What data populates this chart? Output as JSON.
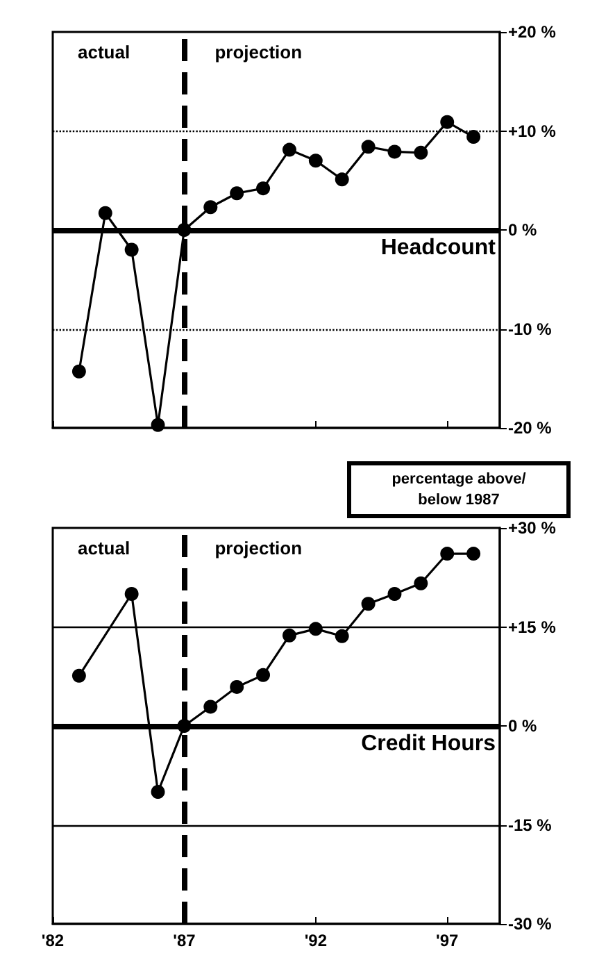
{
  "chart_data": [
    {
      "type": "line",
      "x": [
        1983,
        1984,
        1985,
        1986,
        1987,
        1988,
        1989,
        1990,
        1991,
        1992,
        1993,
        1994,
        1995,
        1996,
        1997,
        1998
      ],
      "series": [
        {
          "name": "Headcount",
          "color": "#000000",
          "values": [
            -14.3,
            1.7,
            -2.0,
            -19.7,
            0,
            2.3,
            3.7,
            4.2,
            8.1,
            7.0,
            5.1,
            8.4,
            7.9,
            7.8,
            10.9,
            9.4
          ]
        }
      ],
      "xlim": [
        1982,
        1999
      ],
      "xticks": [
        1982,
        1987,
        1992,
        1997
      ],
      "ylim": [
        -20,
        20
      ],
      "yticks": [
        {
          "value": 20,
          "label": "+20 %"
        },
        {
          "value": 10,
          "label": "+10 %"
        },
        {
          "value": 0,
          "label": "0 %"
        },
        {
          "value": -10,
          "label": "-10 %"
        },
        {
          "value": -20,
          "label": "-20 %"
        }
      ],
      "tick_labels": "y",
      "marker": "circle",
      "line_style": "solid",
      "grid": false,
      "legend": false,
      "ref_lines": [
        {
          "axis": "x",
          "value": 1987,
          "line_style": "dashed"
        },
        {
          "axis": "y",
          "value": 0,
          "line_style": "solid"
        },
        {
          "axis": "y",
          "value": 10,
          "line_style": "dotted"
        },
        {
          "axis": "y",
          "value": -10,
          "line_style": "dotted"
        }
      ],
      "annotations": [
        "actual",
        "projection"
      ]
    },
    {
      "type": "line",
      "series": [
        {
          "name": "Credit Hours",
          "color": "#000000",
          "x": [
            1983,
            1985,
            1986,
            1987,
            1988,
            1989,
            1990,
            1991,
            1992,
            1993,
            1994,
            1995,
            1996,
            1997,
            1998
          ],
          "values": [
            7.6,
            20.0,
            -10.0,
            0,
            2.9,
            5.9,
            7.7,
            13.7,
            14.7,
            13.6,
            18.5,
            20.0,
            21.6,
            26.1,
            26.1
          ]
        }
      ],
      "xlim": [
        1982,
        1999
      ],
      "xticks": [
        {
          "value": 1982,
          "label": "'82"
        },
        {
          "value": 1987,
          "label": "'87"
        },
        {
          "value": 1992,
          "label": "'92"
        },
        {
          "value": 1997,
          "label": "'97"
        }
      ],
      "ylim": [
        -30,
        30
      ],
      "yticks": [
        {
          "value": 30,
          "label": "+30 %"
        },
        {
          "value": 15,
          "label": "+15 %"
        },
        {
          "value": 0,
          "label": "0 %"
        },
        {
          "value": -15,
          "label": "-15 %"
        },
        {
          "value": -30,
          "label": "-30 %"
        }
      ],
      "marker": "circle",
      "line_style": "solid",
      "grid": false,
      "legend": false,
      "ref_lines": [
        {
          "axis": "x",
          "value": 1987,
          "line_style": "dashed"
        },
        {
          "axis": "y",
          "value": 0,
          "line_style": "solid"
        },
        {
          "axis": "y",
          "value": 15,
          "line_style": "solid"
        },
        {
          "axis": "y",
          "value": -15,
          "line_style": "solid"
        }
      ],
      "annotations": [
        "actual",
        "projection",
        "percentage above/below 1987"
      ]
    }
  ]
}
